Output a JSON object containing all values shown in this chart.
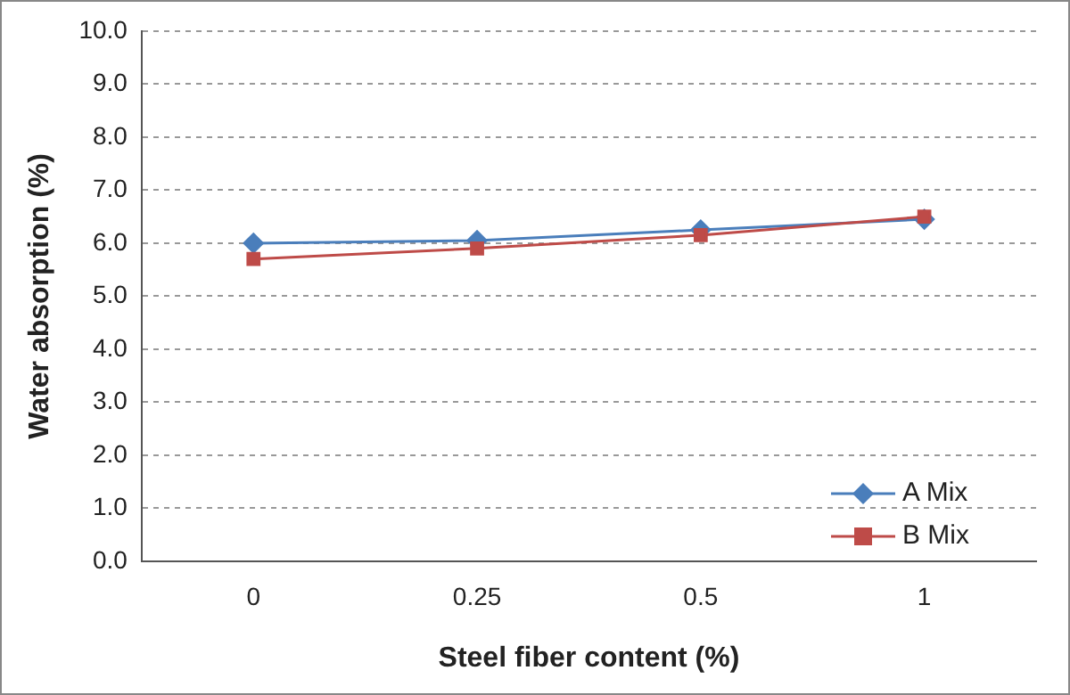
{
  "chart_data": {
    "type": "line",
    "xlabel": "Steel fiber content (%)",
    "ylabel": "Water absorption (%)",
    "categories": [
      "0",
      "0.25",
      "0.5",
      "1"
    ],
    "series": [
      {
        "name": "A Mix",
        "color": "#4a7ebb",
        "marker": "diamond",
        "values": [
          6.0,
          6.05,
          6.25,
          6.45
        ]
      },
      {
        "name": "B Mix",
        "color": "#be4b48",
        "marker": "square",
        "values": [
          5.7,
          5.9,
          6.15,
          6.5
        ]
      }
    ],
    "ylim": [
      0,
      10
    ],
    "yticks": [
      {
        "value": 0,
        "label": "0.0"
      },
      {
        "value": 1,
        "label": "1.0"
      },
      {
        "value": 2,
        "label": "2.0"
      },
      {
        "value": 3,
        "label": "3.0"
      },
      {
        "value": 4,
        "label": "4.0"
      },
      {
        "value": 5,
        "label": "5.0"
      },
      {
        "value": 6,
        "label": "6.0"
      },
      {
        "value": 7,
        "label": "7.0"
      },
      {
        "value": 8,
        "label": "8.0"
      },
      {
        "value": 9,
        "label": "9.0"
      },
      {
        "value": 10,
        "label": "10.0"
      }
    ],
    "grid": "y",
    "legend": "bottom right",
    "line_style": "solid"
  }
}
